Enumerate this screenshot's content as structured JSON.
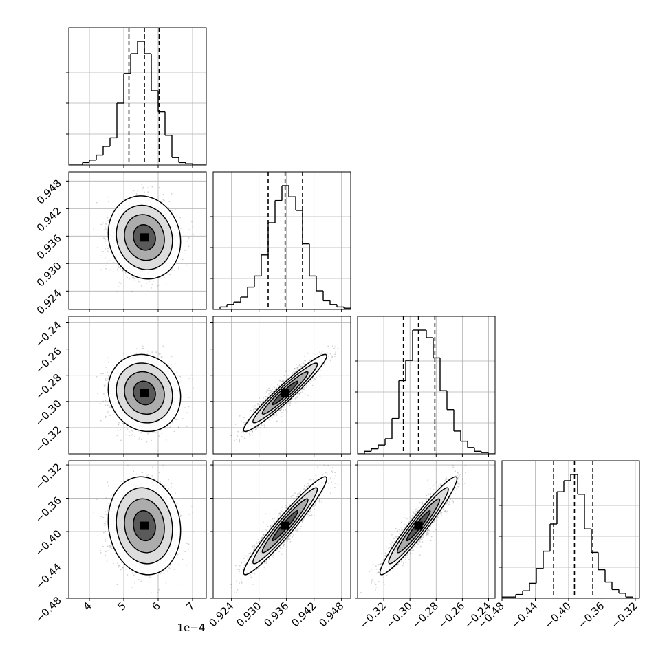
{
  "chart_data": {
    "type": "corner",
    "parameters": [
      {
        "index": 0,
        "range": [
          3.4,
          7.4
        ],
        "ticks": [
          4,
          5,
          6,
          7
        ],
        "tick_labels": [
          "4",
          "5",
          "6",
          "7"
        ],
        "offset_text": "1e−4",
        "quantiles": [
          5.15,
          5.6,
          6.03
        ],
        "median": 5.6,
        "sigma": 0.43
      },
      {
        "index": 1,
        "range": [
          0.92,
          0.95
        ],
        "ticks": [
          0.924,
          0.93,
          0.936,
          0.942,
          0.948
        ],
        "tick_labels": [
          "0.924",
          "0.930",
          "0.936",
          "0.942",
          "0.948"
        ],
        "quantiles": [
          0.932,
          0.9357,
          0.9395
        ],
        "median": 0.9357,
        "sigma": 0.0037
      },
      {
        "index": 2,
        "range": [
          -0.34,
          -0.235
        ],
        "ticks": [
          -0.32,
          -0.3,
          -0.28,
          -0.26,
          -0.24
        ],
        "tick_labels": [
          "−0.32",
          "−0.30",
          "−0.28",
          "−0.26",
          "−0.24"
        ],
        "quantiles": [
          -0.305,
          -0.2935,
          -0.281
        ],
        "median": -0.2935,
        "sigma": 0.012
      },
      {
        "index": 3,
        "range": [
          -0.48,
          -0.315
        ],
        "ticks": [
          -0.48,
          -0.44,
          -0.4,
          -0.36,
          -0.32
        ],
        "tick_labels": [
          "−0.48",
          "−0.44",
          "−0.40",
          "−0.36",
          "−0.32"
        ],
        "quantiles": [
          -0.418,
          -0.393,
          -0.371
        ],
        "median": -0.393,
        "sigma": 0.024
      }
    ],
    "histograms": [
      {
        "param": 0,
        "edges_start": 3.4,
        "bin_width": 0.2,
        "counts": [
          0,
          0,
          0.02,
          0.04,
          0.08,
          0.15,
          0.22,
          0.5,
          0.74,
          0.9,
          1.0,
          0.9,
          0.6,
          0.43,
          0.24,
          0.06,
          0.02,
          0.01,
          0,
          0
        ]
      },
      {
        "param": 1,
        "edges_start": 0.92,
        "bin_width": 0.0015,
        "counts": [
          0,
          0.02,
          0.04,
          0.06,
          0.1,
          0.18,
          0.27,
          0.44,
          0.7,
          0.88,
          1.0,
          0.91,
          0.8,
          0.53,
          0.27,
          0.15,
          0.07,
          0.04,
          0.02,
          0.01
        ]
      },
      {
        "param": 2,
        "edges_start": -0.34,
        "bin_width": 0.00525,
        "counts": [
          0,
          0.02,
          0.04,
          0.07,
          0.12,
          0.28,
          0.58,
          0.74,
          0.98,
          0.98,
          0.92,
          0.76,
          0.5,
          0.35,
          0.18,
          0.1,
          0.05,
          0.02,
          0.01,
          0
        ]
      },
      {
        "param": 3,
        "edges_start": -0.48,
        "bin_width": 0.00825,
        "counts": [
          0.01,
          0.01,
          0.03,
          0.06,
          0.12,
          0.24,
          0.38,
          0.6,
          0.86,
          0.95,
          1.0,
          0.84,
          0.56,
          0.37,
          0.23,
          0.13,
          0.07,
          0.04,
          0.01,
          0
        ]
      }
    ],
    "correlations": {
      "1-2": 0.96,
      "1-3": 0.96,
      "2-3": 0.96,
      "0-1": 0.0,
      "0-2": 0.0,
      "0-3": 0.0
    },
    "grid": true,
    "colors": {
      "hist": "#000000",
      "scatter": "#7f7f7f",
      "contour": "#000000",
      "axes": "#000000",
      "grid": "#b0b0b0"
    }
  }
}
